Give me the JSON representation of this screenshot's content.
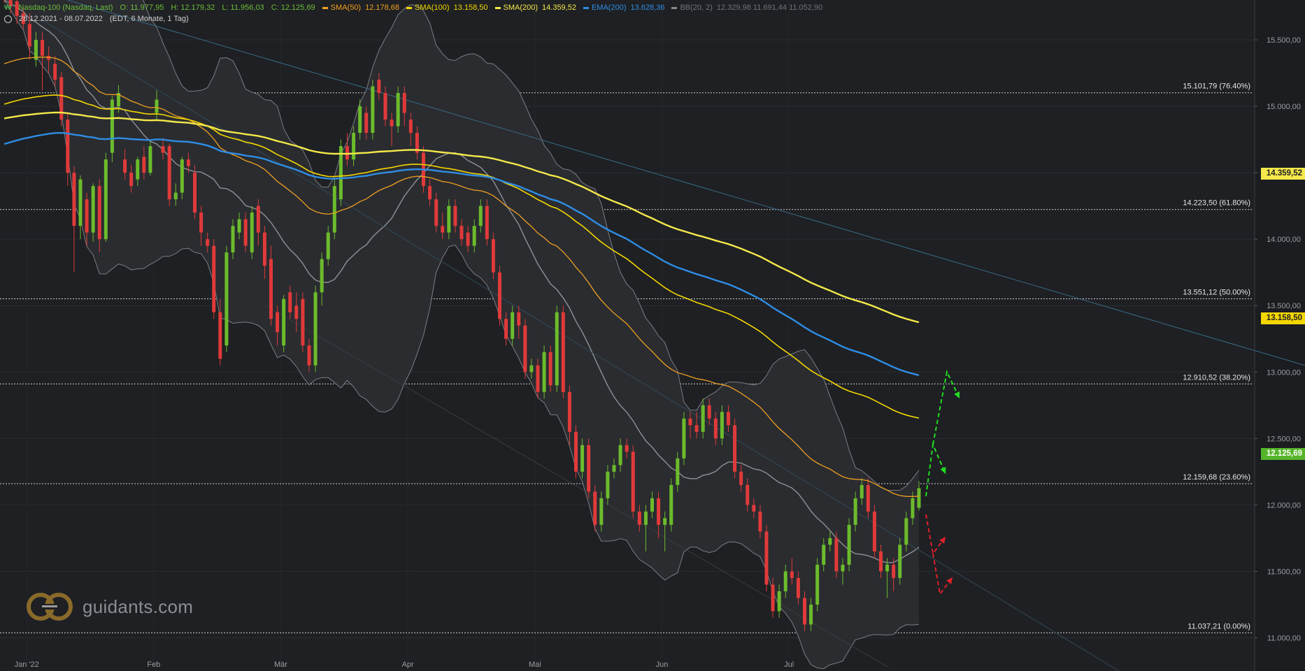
{
  "header": {
    "instrument": "Nasdaq-100 (Nasdaq, Last)",
    "open": "O: 11.977,95",
    "high": "H: 12.179,32",
    "low": "L: 11.956,03",
    "close": "C: 12.125,69",
    "range": "28.12.2021 - 08.07.2022",
    "meta": "(EDT, 6 Monate, 1 Tag)",
    "indicators": [
      {
        "name": "SMA(50)",
        "value": "12.178,68",
        "color": "#f0a020"
      },
      {
        "name": "SMA(100)",
        "value": "13.158,50",
        "color": "#f4d600"
      },
      {
        "name": "SMA(200)",
        "value": "14.359,52",
        "color": "#f4e84a"
      },
      {
        "name": "EMA(200)",
        "value": "13.628,36",
        "color": "#2f8de4"
      },
      {
        "name": "BB(20, 2)",
        "value": "12.329,98  11.691,44  11.052,90",
        "color": "#8a8a8a"
      }
    ]
  },
  "price_tags": {
    "sma200": "14.359,52",
    "sma100": "13.158,50",
    "last": "12.125,69"
  },
  "watermark": "guidants.com",
  "chart_data": {
    "type": "candlestick",
    "title": "Nasdaq-100 (Nasdaq, Last)",
    "ylim": [
      10750,
      15800
    ],
    "y_ticks": [
      "15.500,00",
      "15.000,00",
      "14.500,00",
      "14.000,00",
      "13.500,00",
      "13.000,00",
      "12.500,00",
      "12.000,00",
      "11.500,00",
      "11.000,00"
    ],
    "y_tick_values": [
      15500,
      15000,
      14500,
      14000,
      13500,
      13000,
      12500,
      12000,
      11500,
      11000
    ],
    "x_ticks": [
      "Jan '22",
      "Feb",
      "Mär",
      "Apr",
      "Mai",
      "Jun",
      "Jul"
    ],
    "x_tick_index": [
      2,
      22,
      42,
      62,
      82,
      102,
      122
    ],
    "fibonacci": [
      {
        "value": 15101.79,
        "label": "15.101,79 (76.40%)"
      },
      {
        "value": 14223.5,
        "label": "14.223,50 (61.80%)"
      },
      {
        "value": 13551.12,
        "label": "13.551,12 (50.00%)"
      },
      {
        "value": 12910.52,
        "label": "12.910,52 (38.20%)"
      },
      {
        "value": 12159.68,
        "label": "12.159,68 (23.60%)"
      },
      {
        "value": 11037.21,
        "label": "11.037,21 (0.00%)"
      }
    ],
    "candles": [
      [
        15950,
        15800,
        15980,
        15780
      ],
      [
        15850,
        15750,
        15900,
        15700
      ],
      [
        15790,
        15680,
        15850,
        15620
      ],
      [
        15700,
        15620,
        15750,
        15580
      ],
      [
        15620,
        15450,
        15700,
        15350
      ],
      [
        15350,
        15500,
        15560,
        15300
      ],
      [
        15500,
        15380,
        15560,
        15120
      ],
      [
        15380,
        15350,
        15450,
        15250
      ],
      [
        15320,
        15200,
        15380,
        15150
      ],
      [
        15220,
        14900,
        15260,
        14850
      ],
      [
        14900,
        14500,
        14950,
        14400
      ],
      [
        14500,
        14100,
        14550,
        13750
      ],
      [
        14100,
        14450,
        14480,
        14000
      ],
      [
        14300,
        14050,
        14350,
        13950
      ],
      [
        14050,
        14400,
        14420,
        13980
      ],
      [
        14400,
        14000,
        14450,
        13900
      ],
      [
        14000,
        14600,
        14650,
        13980
      ],
      [
        14650,
        15050,
        15080,
        14580
      ],
      [
        15000,
        15100,
        15160,
        14950
      ],
      [
        14600,
        14500,
        14680,
        14450
      ],
      [
        14500,
        14400,
        14560,
        14350
      ],
      [
        14450,
        14600,
        14620,
        14400
      ],
      [
        14620,
        14500,
        14700,
        14450
      ],
      [
        14500,
        14700,
        14750,
        14480
      ],
      [
        14950,
        15050,
        15120,
        14900
      ],
      [
        14700,
        14650,
        14760,
        14600
      ],
      [
        14700,
        14300,
        14720,
        14250
      ],
      [
        14300,
        14350,
        14420,
        14250
      ],
      [
        14350,
        14600,
        14620,
        14300
      ],
      [
        14600,
        14550,
        14650,
        14500
      ],
      [
        14500,
        14200,
        14560,
        14150
      ],
      [
        14200,
        14050,
        14250,
        13950
      ],
      [
        14000,
        13950,
        14050,
        13900
      ],
      [
        13950,
        13450,
        14000,
        13400
      ],
      [
        13450,
        13100,
        13550,
        13050
      ],
      [
        13200,
        13900,
        13950,
        13150
      ],
      [
        13900,
        14100,
        14150,
        13850
      ],
      [
        14050,
        14150,
        14200,
        14000
      ],
      [
        14150,
        13950,
        14200,
        13900
      ],
      [
        13900,
        14200,
        14250,
        13850
      ],
      [
        14250,
        14050,
        14300,
        13950
      ],
      [
        14050,
        13800,
        14100,
        13700
      ],
      [
        13850,
        13400,
        13950,
        13350
      ],
      [
        13450,
        13300,
        13500,
        13200
      ],
      [
        13200,
        13550,
        13580,
        13150
      ],
      [
        13600,
        13450,
        13650,
        13400
      ],
      [
        13500,
        13400,
        13600,
        13300
      ],
      [
        13550,
        13200,
        13600,
        13150
      ],
      [
        13200,
        13050,
        13250,
        13000
      ],
      [
        13050,
        13600,
        13650,
        13000
      ],
      [
        13600,
        13850,
        13900,
        13500
      ],
      [
        13850,
        14050,
        14100,
        13800
      ],
      [
        14050,
        14400,
        14450,
        14000
      ],
      [
        14300,
        14700,
        14750,
        14250
      ],
      [
        14700,
        14600,
        14800,
        14550
      ],
      [
        14600,
        14800,
        14850,
        14550
      ],
      [
        14800,
        15000,
        15050,
        14750
      ],
      [
        14950,
        14800,
        15000,
        14750
      ],
      [
        14800,
        15150,
        15200,
        14750
      ],
      [
        15200,
        15100,
        15250,
        15050
      ],
      [
        15100,
        14900,
        15150,
        14850
      ],
      [
        14900,
        14850,
        14950,
        14700
      ],
      [
        14850,
        15100,
        15150,
        14800
      ],
      [
        15100,
        14950,
        15150,
        14850
      ],
      [
        14900,
        14800,
        14950,
        14700
      ],
      [
        14800,
        14650,
        14850,
        14600
      ],
      [
        14650,
        14400,
        14700,
        14350
      ],
      [
        14400,
        14300,
        14450,
        14250
      ],
      [
        14300,
        14100,
        14350,
        14050
      ],
      [
        14100,
        14050,
        14200,
        14000
      ],
      [
        14050,
        14250,
        14300,
        14000
      ],
      [
        14250,
        14100,
        14300,
        14050
      ],
      [
        14100,
        14000,
        14150,
        13950
      ],
      [
        14050,
        13950,
        14100,
        13900
      ],
      [
        13950,
        14100,
        14150,
        13900
      ],
      [
        14100,
        14250,
        14300,
        14050
      ],
      [
        14250,
        14000,
        14300,
        13950
      ],
      [
        14000,
        13750,
        14050,
        13700
      ],
      [
        13750,
        13400,
        13800,
        13350
      ],
      [
        13400,
        13250,
        13450,
        13200
      ],
      [
        13250,
        13450,
        13500,
        13200
      ],
      [
        13450,
        13350,
        13500,
        13250
      ],
      [
        13350,
        13000,
        13400,
        12950
      ],
      [
        13000,
        13050,
        13100,
        12950
      ],
      [
        13050,
        12850,
        13100,
        12800
      ],
      [
        12850,
        13150,
        13200,
        12800
      ],
      [
        13150,
        12900,
        13200,
        12850
      ],
      [
        12900,
        13450,
        13500,
        12850
      ],
      [
        13450,
        12850,
        13500,
        12800
      ],
      [
        12850,
        12550,
        12900,
        12450
      ],
      [
        12550,
        12250,
        12600,
        12200
      ],
      [
        12250,
        12450,
        12500,
        12200
      ],
      [
        12450,
        12100,
        12500,
        12050
      ],
      [
        12100,
        11850,
        12150,
        11800
      ],
      [
        11850,
        12050,
        12100,
        11800
      ],
      [
        12050,
        12250,
        12300,
        12000
      ],
      [
        12250,
        12300,
        12350,
        12200
      ],
      [
        12300,
        12450,
        12500,
        12250
      ],
      [
        12450,
        12400,
        12500,
        12350
      ],
      [
        12400,
        11950,
        12450,
        11900
      ],
      [
        11950,
        11850,
        12000,
        11800
      ],
      [
        11850,
        11950,
        12000,
        11650
      ],
      [
        11950,
        12050,
        12100,
        11900
      ],
      [
        12050,
        11850,
        12100,
        11750
      ],
      [
        11850,
        11900,
        11950,
        11650
      ],
      [
        11850,
        12150,
        12200,
        11800
      ],
      [
        12150,
        12350,
        12400,
        12100
      ],
      [
        12350,
        12650,
        12700,
        12300
      ],
      [
        12650,
        12600,
        12700,
        12500
      ],
      [
        12600,
        12550,
        12700,
        12500
      ],
      [
        12550,
        12750,
        12800,
        12500
      ],
      [
        12750,
        12650,
        12800,
        12600
      ],
      [
        12650,
        12500,
        12700,
        12450
      ],
      [
        12500,
        12700,
        12750,
        12450
      ],
      [
        12700,
        12600,
        12750,
        12550
      ],
      [
        12600,
        12250,
        12650,
        12200
      ],
      [
        12250,
        12150,
        12300,
        12100
      ],
      [
        12150,
        12000,
        12200,
        11950
      ],
      [
        12000,
        11950,
        12050,
        11900
      ],
      [
        11950,
        11800,
        12000,
        11750
      ],
      [
        11800,
        11400,
        11850,
        11350
      ],
      [
        11400,
        11200,
        11450,
        11150
      ],
      [
        11200,
        11350,
        11400,
        11150
      ],
      [
        11350,
        11500,
        11550,
        11300
      ],
      [
        11500,
        11450,
        11600,
        11400
      ],
      [
        11450,
        11300,
        11500,
        11250
      ],
      [
        11300,
        11100,
        11350,
        11050
      ],
      [
        11100,
        11250,
        11300,
        11050
      ],
      [
        11250,
        11550,
        11600,
        11200
      ],
      [
        11550,
        11700,
        11750,
        11500
      ],
      [
        11700,
        11750,
        11800,
        11650
      ],
      [
        11750,
        11500,
        11800,
        11450
      ],
      [
        11500,
        11550,
        11600,
        11400
      ],
      [
        11550,
        11850,
        11900,
        11500
      ],
      [
        11850,
        12050,
        12100,
        11800
      ],
      [
        12050,
        12150,
        12200,
        12000
      ],
      [
        12150,
        11950,
        12200,
        11900
      ],
      [
        11950,
        11650,
        12000,
        11600
      ],
      [
        11650,
        11500,
        11700,
        11450
      ],
      [
        11500,
        11550,
        11600,
        11300
      ],
      [
        11550,
        11450,
        11600,
        11350
      ],
      [
        11450,
        11700,
        11750,
        11400
      ],
      [
        11700,
        11900,
        11950,
        11650
      ],
      [
        11900,
        12050,
        12100,
        11850
      ],
      [
        11977.95,
        12125.69,
        12179.32,
        11956.03
      ]
    ]
  }
}
